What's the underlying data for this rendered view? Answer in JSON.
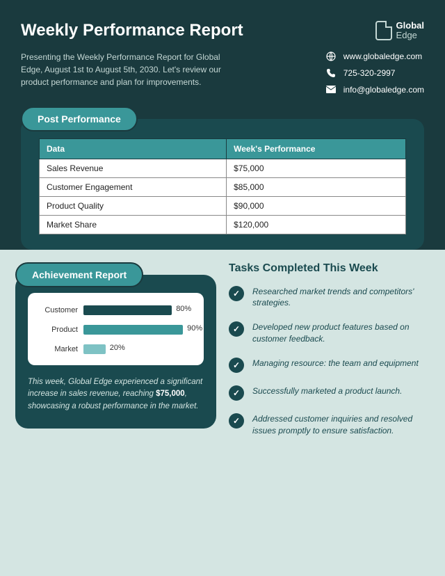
{
  "header": {
    "title": "Weekly Performance Report",
    "intro": "Presenting the Weekly Performance Report for Global Edge, August 1st to August 5th, 2030. Let's review our product performance and plan for improvements.",
    "logo": {
      "line1": "Global",
      "line2": "Edge"
    },
    "contact": {
      "web": "www.globaledge.com",
      "phone": "725-320-2997",
      "email": "info@globaledge.com"
    }
  },
  "post_performance": {
    "pill_label": "Post Performance",
    "columns": [
      "Data",
      "Week's Performance"
    ],
    "rows": [
      [
        "Sales Revenue",
        "$75,000"
      ],
      [
        "Customer Engagement",
        "$85,000"
      ],
      [
        "Product Quality",
        "$90,000"
      ],
      [
        "Market Share",
        "$120,000"
      ]
    ]
  },
  "achievement": {
    "pill_label": "Achievement Report",
    "chart": {
      "type": "bar",
      "background_color": "#ffffff",
      "max_pct": 100,
      "bars": [
        {
          "label": "Customer",
          "value": 80,
          "color": "#1a4a4f",
          "value_label": "80%"
        },
        {
          "label": "Product",
          "value": 90,
          "color": "#3a9799",
          "value_label": "90%"
        },
        {
          "label": "Market",
          "value": 20,
          "color": "#7ec2c4",
          "value_label": "20%"
        }
      ]
    },
    "text_pre": "This week, Global Edge  experienced a significant increase in sales revenue, reaching ",
    "text_bold": "$75,000",
    "text_post": ", showcasing a robust performance in the market."
  },
  "tasks": {
    "title": "Tasks Completed This Week",
    "items": [
      "Researched market trends and competitors' strategies.",
      "Developed new product features based on customer feedback.",
      "Managing resource: the team and equipment",
      "Successfully marketed a product launch.",
      "Addressed customer inquiries and resolved issues promptly to ensure satisfaction."
    ]
  },
  "colors": {
    "dark_bg": "#1a3a3e",
    "card_bg": "#1a4a4f",
    "accent": "#3a9799",
    "page_bg": "#d4e5e2"
  }
}
